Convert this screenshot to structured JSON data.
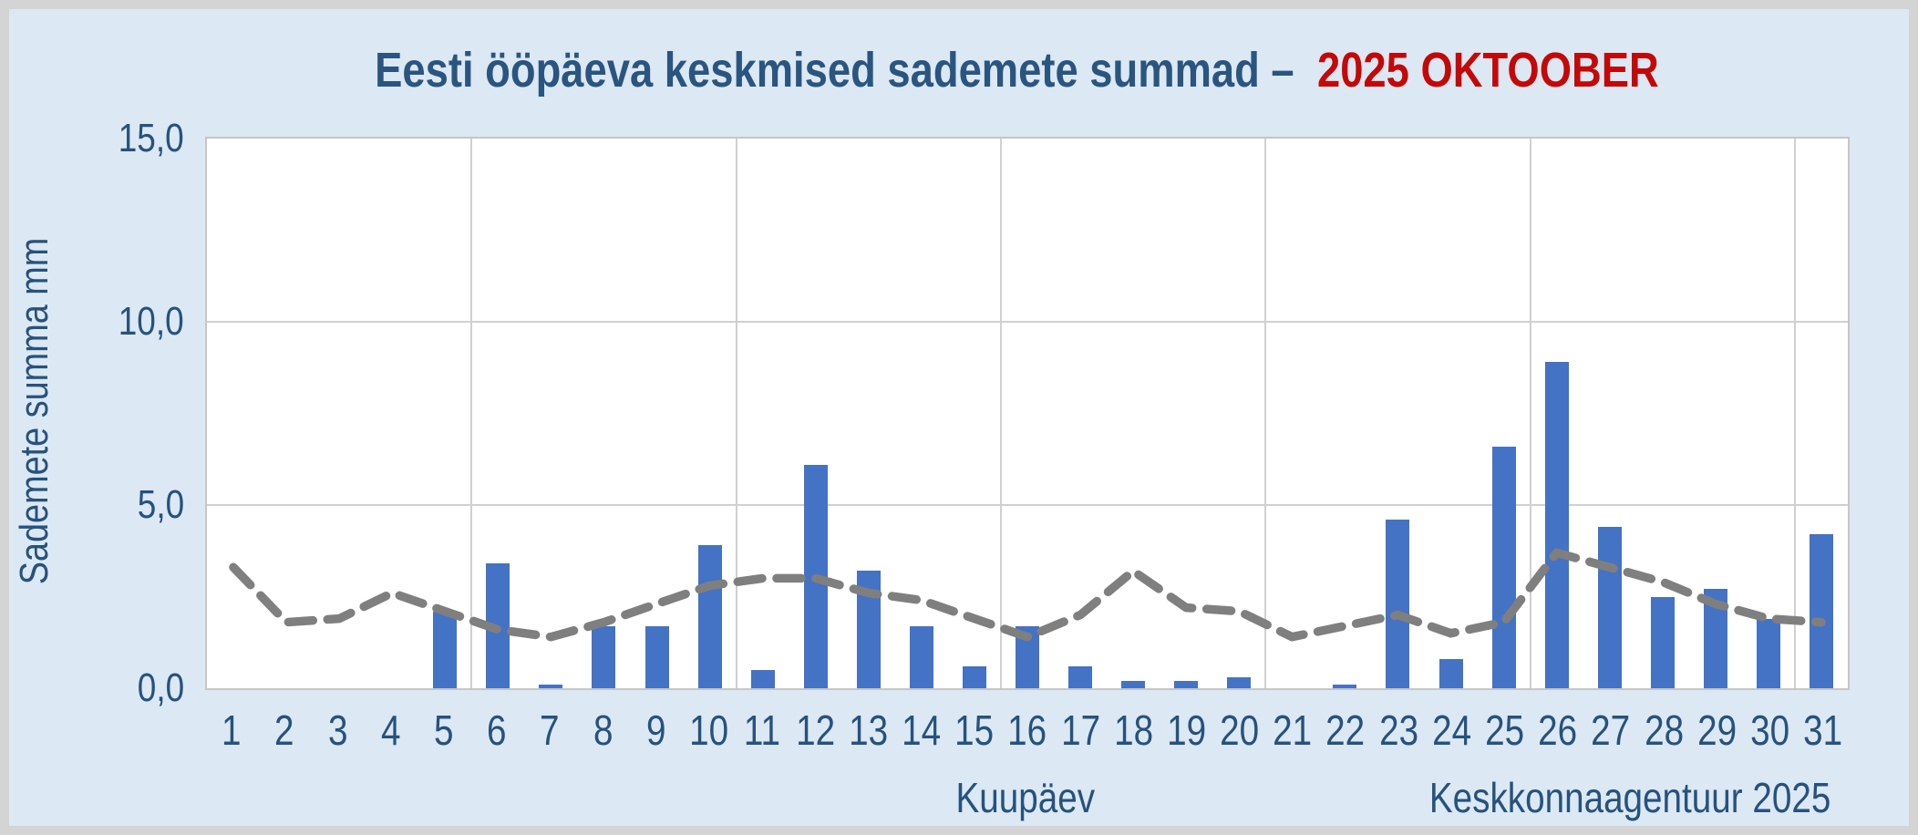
{
  "figure": {
    "title_main": "Eesti ööpäeva keskmised sademete summad –",
    "title_highlight": "2025 OKTOOBER",
    "credit": "Keskkonnaagentuur 2025"
  },
  "chart_data": {
    "type": "bar",
    "title": "Eesti ööpäeva keskmised sademete summad – 2025 OKTOOBER",
    "xlabel": "Kuupäev",
    "ylabel": "Sademete summa mm",
    "ylim": [
      0,
      15
    ],
    "yticks": [
      {
        "label": "0,0",
        "value": 0
      },
      {
        "label": "5,0",
        "value": 5
      },
      {
        "label": "10,0",
        "value": 10
      },
      {
        "label": "15,0",
        "value": 15
      }
    ],
    "grid": {
      "horizontal": true,
      "vertical_every_days": 5
    },
    "legend_position": "none",
    "categories": [
      1,
      2,
      3,
      4,
      5,
      6,
      7,
      8,
      9,
      10,
      11,
      12,
      13,
      14,
      15,
      16,
      17,
      18,
      19,
      20,
      21,
      22,
      23,
      24,
      25,
      26,
      27,
      28,
      29,
      30,
      31
    ],
    "series": [
      {
        "name": "bars",
        "type": "bar",
        "color": "#4472c4",
        "values": [
          0.0,
          0.0,
          0.0,
          0.0,
          2.1,
          3.4,
          0.1,
          1.7,
          1.7,
          3.9,
          0.5,
          6.1,
          3.2,
          1.7,
          0.6,
          1.7,
          0.6,
          0.2,
          0.2,
          0.3,
          0.0,
          0.1,
          4.6,
          0.8,
          6.6,
          8.9,
          4.4,
          2.5,
          2.7,
          1.9,
          4.2
        ]
      },
      {
        "name": "dashed_line",
        "type": "line",
        "style": "dashed",
        "color": "#7f7f7f",
        "values": [
          3.3,
          1.8,
          1.9,
          2.6,
          2.1,
          1.6,
          1.4,
          1.8,
          2.3,
          2.8,
          3.0,
          3.0,
          2.6,
          2.4,
          1.9,
          1.4,
          2.0,
          3.2,
          2.2,
          2.1,
          1.4,
          1.7,
          2.0,
          1.5,
          1.8,
          3.7,
          3.3,
          2.9,
          2.3,
          1.9,
          1.8
        ]
      }
    ]
  },
  "colors": {
    "background": "#dce8f3",
    "frame_border": "#d4d4d4",
    "plot_background": "#ffffff",
    "gridline": "#d0d0d0",
    "bar": "#4472c4",
    "dashed_line": "#7f7f7f",
    "text_blue": "#26527d",
    "title_blue": "#2a5580",
    "title_red": "#c40808"
  }
}
